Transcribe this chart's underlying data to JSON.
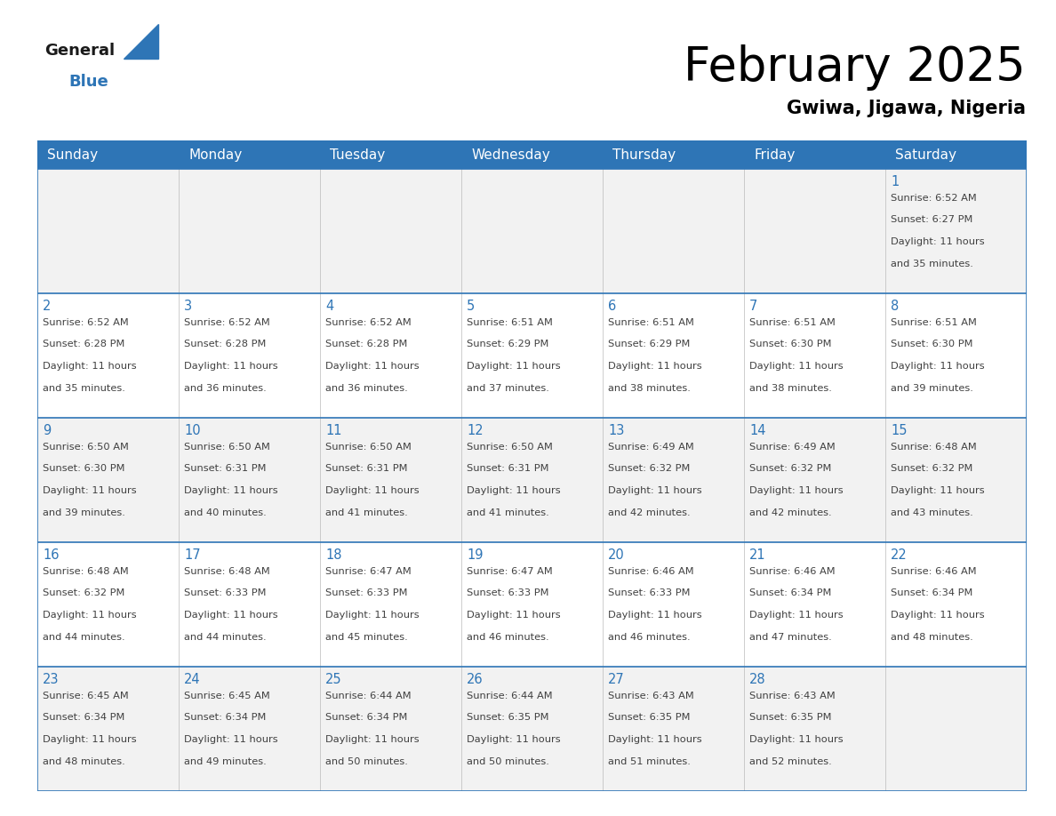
{
  "title": "February 2025",
  "subtitle": "Gwiwa, Jigawa, Nigeria",
  "days_of_week": [
    "Sunday",
    "Monday",
    "Tuesday",
    "Wednesday",
    "Thursday",
    "Friday",
    "Saturday"
  ],
  "header_bg": "#2E75B6",
  "header_text": "#FFFFFF",
  "cell_bg_odd": "#F2F2F2",
  "cell_bg_even": "#FFFFFF",
  "day_number_color": "#2E75B6",
  "cell_text_color": "#404040",
  "border_color": "#2E75B6",
  "title_color": "#000000",
  "subtitle_color": "#000000",
  "logo_general_color": "#1a1a1a",
  "logo_blue_color": "#2E75B6",
  "calendar": [
    [
      null,
      null,
      null,
      null,
      null,
      null,
      1
    ],
    [
      2,
      3,
      4,
      5,
      6,
      7,
      8
    ],
    [
      9,
      10,
      11,
      12,
      13,
      14,
      15
    ],
    [
      16,
      17,
      18,
      19,
      20,
      21,
      22
    ],
    [
      23,
      24,
      25,
      26,
      27,
      28,
      null
    ]
  ],
  "day_data": {
    "1": {
      "sunrise": "6:52 AM",
      "sunset": "6:27 PM",
      "daylight_hours": 11,
      "daylight_minutes": 35
    },
    "2": {
      "sunrise": "6:52 AM",
      "sunset": "6:28 PM",
      "daylight_hours": 11,
      "daylight_minutes": 35
    },
    "3": {
      "sunrise": "6:52 AM",
      "sunset": "6:28 PM",
      "daylight_hours": 11,
      "daylight_minutes": 36
    },
    "4": {
      "sunrise": "6:52 AM",
      "sunset": "6:28 PM",
      "daylight_hours": 11,
      "daylight_minutes": 36
    },
    "5": {
      "sunrise": "6:51 AM",
      "sunset": "6:29 PM",
      "daylight_hours": 11,
      "daylight_minutes": 37
    },
    "6": {
      "sunrise": "6:51 AM",
      "sunset": "6:29 PM",
      "daylight_hours": 11,
      "daylight_minutes": 38
    },
    "7": {
      "sunrise": "6:51 AM",
      "sunset": "6:30 PM",
      "daylight_hours": 11,
      "daylight_minutes": 38
    },
    "8": {
      "sunrise": "6:51 AM",
      "sunset": "6:30 PM",
      "daylight_hours": 11,
      "daylight_minutes": 39
    },
    "9": {
      "sunrise": "6:50 AM",
      "sunset": "6:30 PM",
      "daylight_hours": 11,
      "daylight_minutes": 39
    },
    "10": {
      "sunrise": "6:50 AM",
      "sunset": "6:31 PM",
      "daylight_hours": 11,
      "daylight_minutes": 40
    },
    "11": {
      "sunrise": "6:50 AM",
      "sunset": "6:31 PM",
      "daylight_hours": 11,
      "daylight_minutes": 41
    },
    "12": {
      "sunrise": "6:50 AM",
      "sunset": "6:31 PM",
      "daylight_hours": 11,
      "daylight_minutes": 41
    },
    "13": {
      "sunrise": "6:49 AM",
      "sunset": "6:32 PM",
      "daylight_hours": 11,
      "daylight_minutes": 42
    },
    "14": {
      "sunrise": "6:49 AM",
      "sunset": "6:32 PM",
      "daylight_hours": 11,
      "daylight_minutes": 42
    },
    "15": {
      "sunrise": "6:48 AM",
      "sunset": "6:32 PM",
      "daylight_hours": 11,
      "daylight_minutes": 43
    },
    "16": {
      "sunrise": "6:48 AM",
      "sunset": "6:32 PM",
      "daylight_hours": 11,
      "daylight_minutes": 44
    },
    "17": {
      "sunrise": "6:48 AM",
      "sunset": "6:33 PM",
      "daylight_hours": 11,
      "daylight_minutes": 44
    },
    "18": {
      "sunrise": "6:47 AM",
      "sunset": "6:33 PM",
      "daylight_hours": 11,
      "daylight_minutes": 45
    },
    "19": {
      "sunrise": "6:47 AM",
      "sunset": "6:33 PM",
      "daylight_hours": 11,
      "daylight_minutes": 46
    },
    "20": {
      "sunrise": "6:46 AM",
      "sunset": "6:33 PM",
      "daylight_hours": 11,
      "daylight_minutes": 46
    },
    "21": {
      "sunrise": "6:46 AM",
      "sunset": "6:34 PM",
      "daylight_hours": 11,
      "daylight_minutes": 47
    },
    "22": {
      "sunrise": "6:46 AM",
      "sunset": "6:34 PM",
      "daylight_hours": 11,
      "daylight_minutes": 48
    },
    "23": {
      "sunrise": "6:45 AM",
      "sunset": "6:34 PM",
      "daylight_hours": 11,
      "daylight_minutes": 48
    },
    "24": {
      "sunrise": "6:45 AM",
      "sunset": "6:34 PM",
      "daylight_hours": 11,
      "daylight_minutes": 49
    },
    "25": {
      "sunrise": "6:44 AM",
      "sunset": "6:34 PM",
      "daylight_hours": 11,
      "daylight_minutes": 50
    },
    "26": {
      "sunrise": "6:44 AM",
      "sunset": "6:35 PM",
      "daylight_hours": 11,
      "daylight_minutes": 50
    },
    "27": {
      "sunrise": "6:43 AM",
      "sunset": "6:35 PM",
      "daylight_hours": 11,
      "daylight_minutes": 51
    },
    "28": {
      "sunrise": "6:43 AM",
      "sunset": "6:35 PM",
      "daylight_hours": 11,
      "daylight_minutes": 52
    }
  }
}
